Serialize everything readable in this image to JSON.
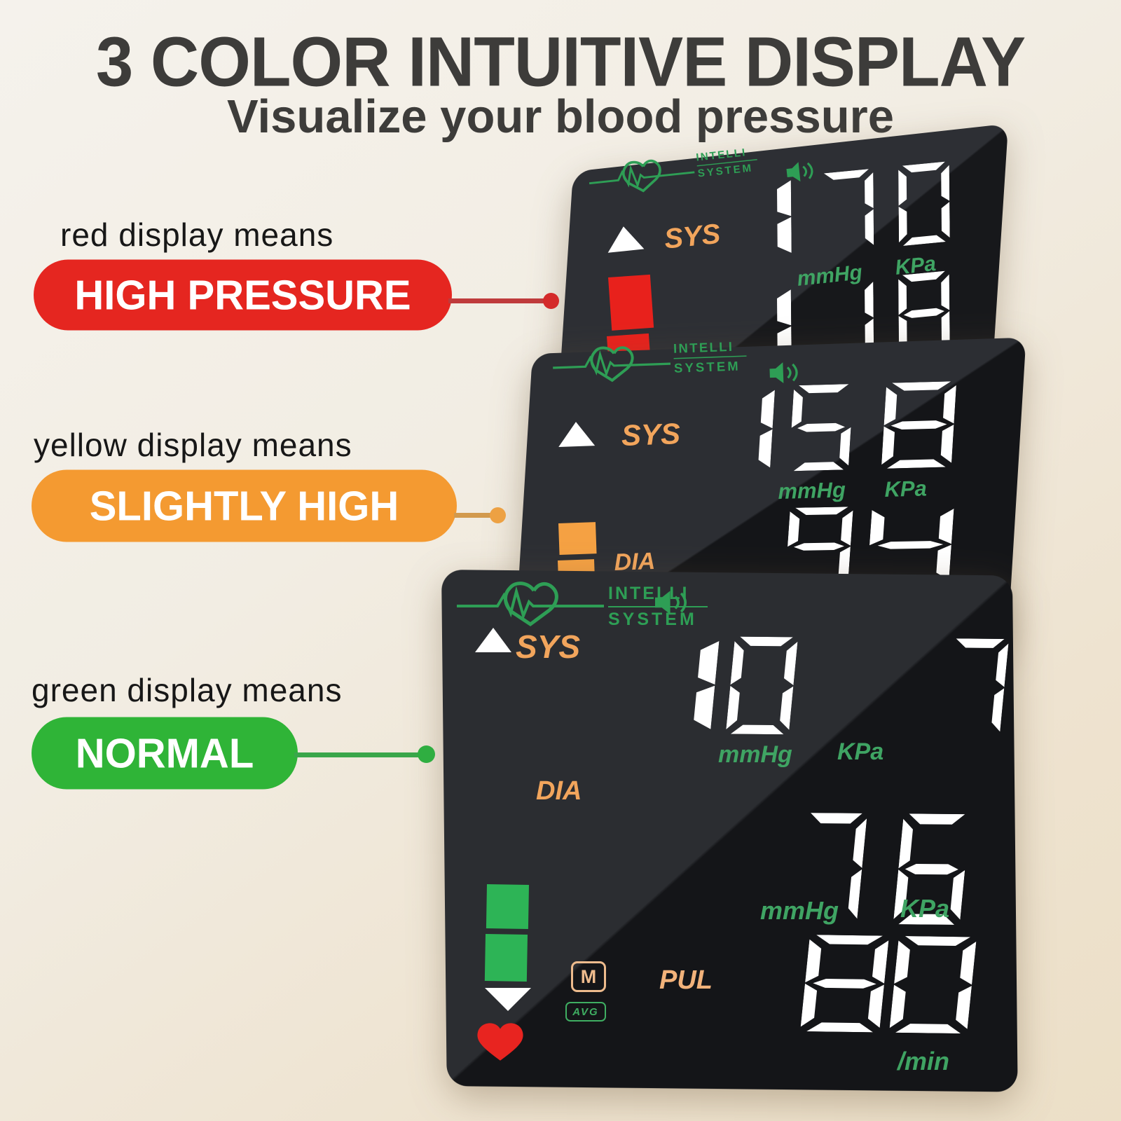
{
  "header": {
    "title": "3 COLOR INTUITIVE DISPLAY",
    "subtitle": "Visualize your blood pressure"
  },
  "legend": {
    "red": {
      "caption": "red display means",
      "label": "HIGH PRESSURE"
    },
    "yellow": {
      "caption": "yellow display means",
      "label": "SLIGHTLY HIGH"
    },
    "green": {
      "caption": "green display means",
      "label": "NORMAL"
    }
  },
  "colors": {
    "red_pill": "#e52620",
    "orange_pill": "#f49a31",
    "green_pill": "#2fb437",
    "display_unit_green": "#3fa463",
    "display_label_orange": "#f2a55c",
    "logo_green": "#2e9e55",
    "level_red": "#e8211c",
    "level_orange": "#f5a143",
    "level_green": "#2db456"
  },
  "displays": {
    "high": {
      "brand_top": "INTELLI",
      "brand_bottom": "SYSTEM",
      "sys_label": "SYS",
      "sys_value": "170",
      "unit_mm": "mmHg",
      "unit_kpa": "KPa",
      "dia_value": "118"
    },
    "slightly_high": {
      "brand_top": "INTELLI",
      "brand_bottom": "SYSTEM",
      "sys_label": "SYS",
      "sys_value": "158",
      "unit_mm": "mmHg",
      "unit_kpa": "KPa",
      "dia_label": "DIA",
      "dia_value": "94"
    },
    "normal": {
      "brand_top": "INTELLI",
      "brand_bottom": "SYSTEM",
      "sys_label": "SYS",
      "sys_value": "107",
      "unit_mm": "mmHg",
      "unit_kpa": "KPa",
      "dia_label": "DIA",
      "dia_value": "76",
      "pul_label": "PUL",
      "pul_value": "80",
      "pul_unit": "/min",
      "memory_badge": "M",
      "avg_badge": "AVG"
    }
  }
}
